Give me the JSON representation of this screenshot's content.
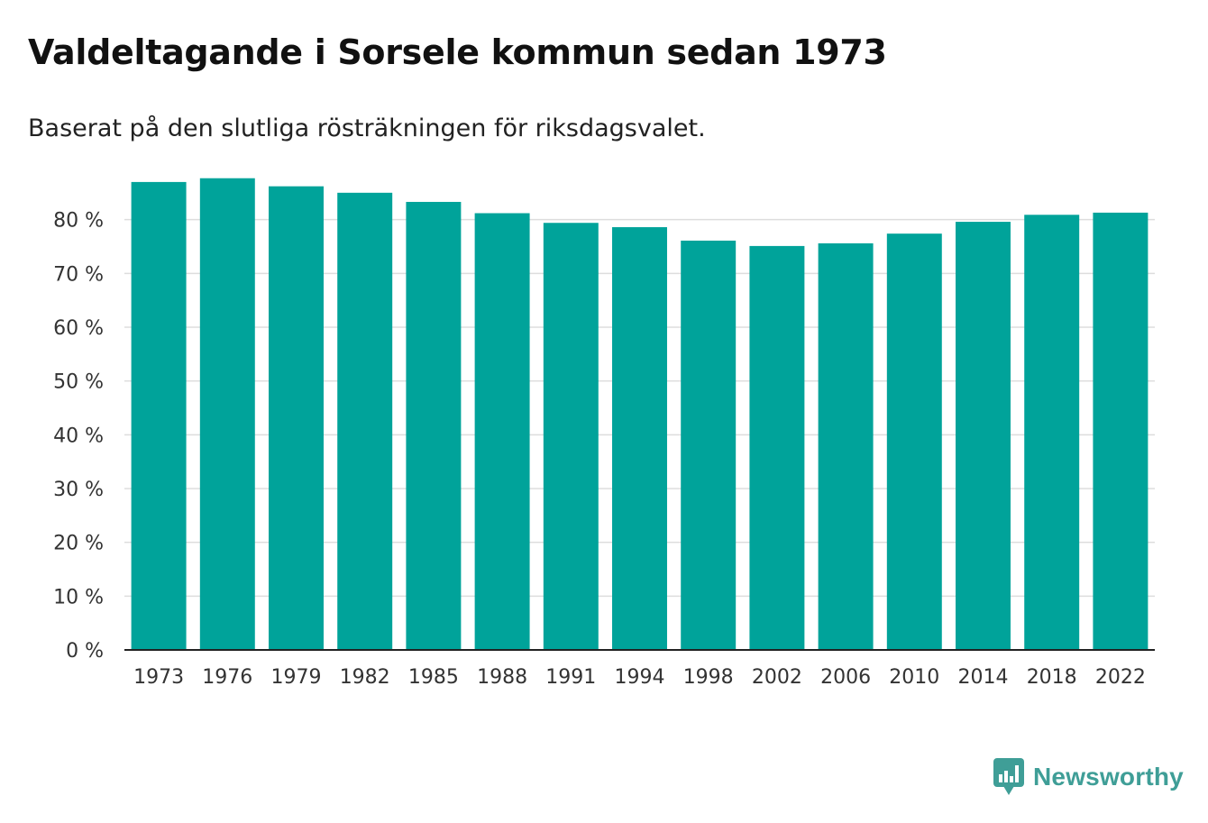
{
  "title": "Valdeltagande i Sorsele kommun sedan 1973",
  "subtitle": "Baserat på den slutliga rösträkningen för riksdagsvalet.",
  "brand": {
    "name": "Newsworthy",
    "icon": "newsworthy-logo-icon",
    "color": "#3f9e97"
  },
  "chart_data": {
    "type": "bar",
    "categories": [
      "1973",
      "1976",
      "1979",
      "1982",
      "1985",
      "1988",
      "1991",
      "1994",
      "1998",
      "2002",
      "2006",
      "2010",
      "2014",
      "2018",
      "2022"
    ],
    "values": [
      87.0,
      87.7,
      86.2,
      85.0,
      83.3,
      81.2,
      79.4,
      78.6,
      76.1,
      75.1,
      75.6,
      77.4,
      79.6,
      80.9,
      81.3
    ],
    "y_ticks": [
      0,
      10,
      20,
      30,
      40,
      50,
      60,
      70,
      80
    ],
    "y_tick_labels": [
      "0 %",
      "10 %",
      "20 %",
      "30 %",
      "40 %",
      "50 %",
      "60 %",
      "70 %",
      "80 %"
    ],
    "ylim": [
      0,
      90
    ],
    "xlabel": "",
    "ylabel": "",
    "grid": true,
    "bar_color": "#00a39a",
    "grid_color": "#dddddd",
    "axis_color": "#222222"
  }
}
